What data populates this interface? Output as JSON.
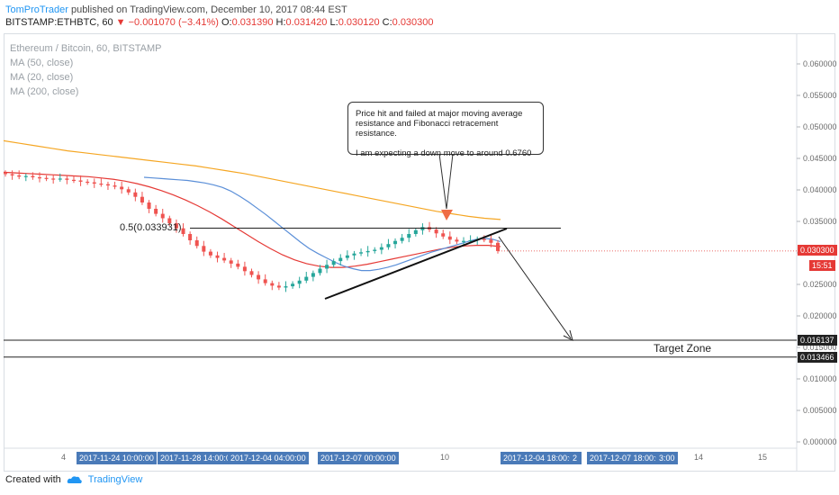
{
  "header": {
    "author": "TomProTrader",
    "published": "published on TradingView.com, December 10, 2017 08:44 EST",
    "symbol": "BITSTAMP:ETHBTC, 60",
    "change": "▼ −0.001070 (−3.41%)",
    "o_label": "O:",
    "o": "0.031390",
    "h_label": "H:",
    "h": "0.031420",
    "l_label": "L:",
    "l": "0.030120",
    "c_label": "C:",
    "c": "0.030300"
  },
  "legend": {
    "title": "Ethereum / Bitcoin, 60, BITSTAMP",
    "ma50": "MA (50, close)",
    "ma20": "MA (20, close)",
    "ma200": "MA (200, close)"
  },
  "annotations": {
    "note_line1": "Price hit and failed at major moving average resistance and Fibonacci retracement resistance.",
    "note_line2": "I am expecting a down move to around 0.6760",
    "fib_label": "0.5(0.033931)",
    "target_label": "Target Zone"
  },
  "price_tags": {
    "last": "0.030300",
    "countdown": "15:51",
    "zone_top": "0.016137",
    "zone_bottom": "0.013466"
  },
  "colors": {
    "ma50": "#e53935",
    "ma20": "#5b8fd8",
    "ma200": "#f5a623",
    "up": "#26a69a",
    "down": "#ef5350",
    "arrow": "#ef6c44",
    "author": "#2196f3",
    "date_tag": "#4a7ab8"
  },
  "x_axis": {
    "ticks": [
      {
        "label": "4"
      },
      {
        "label": "10"
      },
      {
        "label": "14"
      },
      {
        "label": "15"
      }
    ],
    "date_tags": [
      "2017-11-24 10:00:00",
      "2017-11-28 14:00:00",
      "2017-12-04 04:00:00",
      "2017-12-07 00:00:00",
      "2017-12-04 18:00:00",
      "2",
      "2017-12-07 18:00:00",
      "3:00"
    ]
  },
  "footer": {
    "created_with": "Created with",
    "brand": "TradingView"
  },
  "chart_data": {
    "type": "candlestick",
    "title": "Ethereum / Bitcoin, 60, BITSTAMP",
    "ylim": [
      0.0,
      0.0645
    ],
    "y_ticks": [
      0.0,
      0.005,
      0.01,
      0.015,
      0.02,
      0.025,
      0.03,
      0.035,
      0.04,
      0.045,
      0.05,
      0.055,
      0.06
    ],
    "y_tick_labels": [
      "0.000000",
      "0.005000",
      "0.010000",
      "0.015000",
      "0.020000",
      "0.025000",
      "0.030000",
      "0.035000",
      "0.040000",
      "0.045000",
      "0.050000",
      "0.055000",
      "0.060000"
    ],
    "grid": false,
    "close_series": [
      0.0425,
      0.0423,
      0.0421,
      0.0422,
      0.042,
      0.0419,
      0.0418,
      0.0417,
      0.0418,
      0.0416,
      0.0415,
      0.0413,
      0.0412,
      0.041,
      0.0409,
      0.0407,
      0.0405,
      0.0401,
      0.0396,
      0.0389,
      0.038,
      0.037,
      0.0362,
      0.0355,
      0.0347,
      0.0339,
      0.033,
      0.032,
      0.0311,
      0.0302,
      0.0296,
      0.0292,
      0.0288,
      0.0283,
      0.0278,
      0.0271,
      0.0265,
      0.0258,
      0.0252,
      0.0248,
      0.0245,
      0.0247,
      0.0251,
      0.0256,
      0.0262,
      0.0268,
      0.0275,
      0.0281,
      0.0287,
      0.0292,
      0.0296,
      0.0299,
      0.0301,
      0.0303,
      0.0305,
      0.0309,
      0.0314,
      0.0319,
      0.0324,
      0.033,
      0.0336,
      0.0341,
      0.0337,
      0.0331,
      0.0326,
      0.0321,
      0.0318,
      0.0319,
      0.032,
      0.0322,
      0.0321,
      0.0316,
      0.0303
    ],
    "ma20": [
      0.042,
      0.0419,
      0.0418,
      0.0417,
      0.0416,
      0.0415,
      0.0413,
      0.0411,
      0.0408,
      0.0404,
      0.0398,
      0.039,
      0.0381,
      0.0371,
      0.0361,
      0.035,
      0.0339,
      0.0328,
      0.0317,
      0.0307,
      0.0299,
      0.0292,
      0.0285,
      0.0279,
      0.0275,
      0.0272,
      0.0272,
      0.0274,
      0.0277,
      0.0281,
      0.0286,
      0.0291,
      0.0296,
      0.0301,
      0.0305,
      0.0309,
      0.0313,
      0.0317,
      0.0321,
      0.0323,
      0.0322,
      0.0318
    ],
    "ma50": [
      0.0428,
      0.0427,
      0.0426,
      0.0425,
      0.0424,
      0.0423,
      0.0422,
      0.0421,
      0.0419,
      0.0417,
      0.0414,
      0.041,
      0.0405,
      0.0399,
      0.0392,
      0.0384,
      0.0375,
      0.0365,
      0.0354,
      0.0342,
      0.033,
      0.0318,
      0.0307,
      0.0297,
      0.0289,
      0.0283,
      0.0279,
      0.0277,
      0.0277,
      0.0279,
      0.0282,
      0.0286,
      0.029,
      0.0294,
      0.0298,
      0.0302,
      0.0306,
      0.0309,
      0.0311,
      0.0312,
      0.0312,
      0.031
    ],
    "ma200": [
      0.0478,
      0.0474,
      0.047,
      0.0466,
      0.0462,
      0.0459,
      0.0456,
      0.0453,
      0.045,
      0.0447,
      0.0444,
      0.0441,
      0.0438,
      0.0434,
      0.043,
      0.0426,
      0.0421,
      0.0416,
      0.0411,
      0.0406,
      0.0401,
      0.0396,
      0.0391,
      0.0386,
      0.0381,
      0.0376,
      0.0371,
      0.0366,
      0.0362,
      0.0358,
      0.0355,
      0.0353
    ],
    "fib_level": 0.033931,
    "target_zone": [
      0.013466,
      0.016137
    ],
    "trendline": [
      [
        0.0225,
        0.0335
      ]
    ],
    "projection_target": 0.016137
  }
}
